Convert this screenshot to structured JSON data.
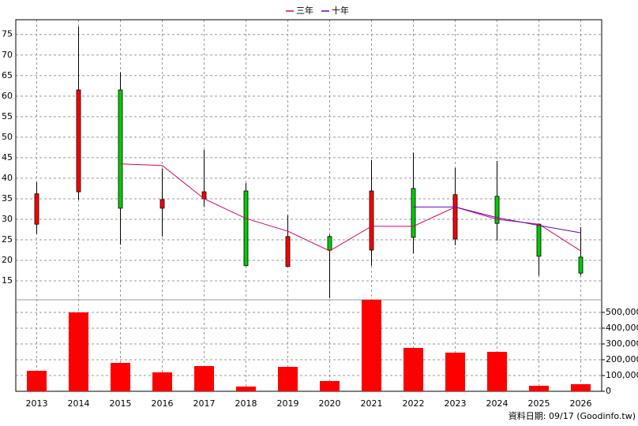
{
  "chart_data": {
    "type": "candlestick",
    "categories": [
      "2013",
      "2014",
      "2015",
      "2016",
      "2017",
      "2018",
      "2019",
      "2020",
      "2021",
      "2022",
      "2023",
      "2024",
      "2025",
      "2026"
    ],
    "candles": {
      "open": [
        28.8,
        36.7,
        61.5,
        32.7,
        35.0,
        36.9,
        18.5,
        25.8,
        22.5,
        37.5,
        25.2,
        35.6,
        28.8,
        20.8
      ],
      "high": [
        39.0,
        76.9,
        65.8,
        42.3,
        46.9,
        38.8,
        31.0,
        26.3,
        44.4,
        46.2,
        42.5,
        44.2,
        29.0,
        28.1
      ],
      "low": [
        26.5,
        34.8,
        23.8,
        25.8,
        33.0,
        18.7,
        18.5,
        10.8,
        18.7,
        21.7,
        23.7,
        24.8,
        16.3,
        16.3
      ],
      "close": [
        36.2,
        61.5,
        32.7,
        34.8,
        36.7,
        18.7,
        25.8,
        22.5,
        36.9,
        25.6,
        36.0,
        29.0,
        21.0,
        16.9
      ],
      "up_color": "#ff0000",
      "down_color": "#00cc00"
    },
    "lines": [
      {
        "name": "三年",
        "color": "#d6006b",
        "values": [
          null,
          null,
          43.5,
          43.1,
          35.0,
          30.2,
          27.1,
          22.3,
          28.3,
          28.3,
          33.0,
          30.0,
          28.8,
          22.3
        ]
      },
      {
        "name": "十年",
        "color": "#6a00c8",
        "values": [
          null,
          null,
          null,
          null,
          null,
          null,
          null,
          null,
          null,
          33.0,
          33.0,
          30.4,
          28.5,
          26.7
        ]
      }
    ],
    "ylim": [
      10.4,
      78.6
    ],
    "yticks": [
      15,
      20,
      25,
      30,
      35,
      40,
      45,
      50,
      55,
      60,
      65,
      70,
      75
    ],
    "grid": true,
    "volume": {
      "color": "#ff0000",
      "values": [
        130000,
        500000,
        180000,
        120000,
        160000,
        30000,
        155000,
        65000,
        580000,
        275000,
        245000,
        250000,
        35000,
        45000
      ],
      "ylim": [
        0,
        580000
      ],
      "yticks": [
        0,
        {
          "value": 100000,
          "label": "100,000"
        },
        {
          "value": 200000,
          "label": "200,000"
        },
        {
          "value": 300000,
          "label": "300,000"
        },
        {
          "value": 400000,
          "label": "400,000"
        },
        {
          "value": 500000,
          "label": "500,000"
        }
      ]
    },
    "footer": "資料日期: 09/17 (Goodinfo.tw)"
  }
}
